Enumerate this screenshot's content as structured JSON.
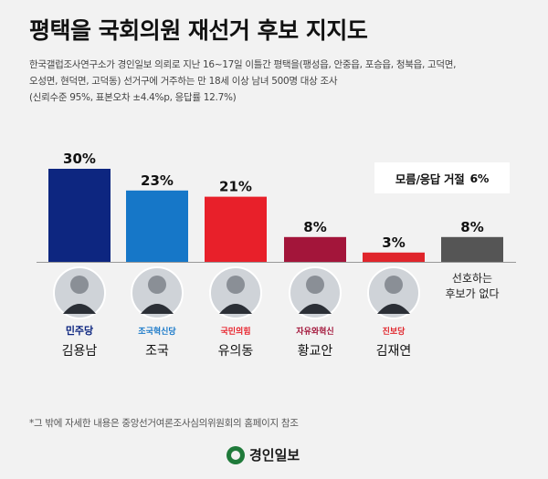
{
  "title": "평택을 국회의원 재선거 후보 지지도",
  "subtitle": [
    "한국갤럽조사연구소가 경인일보 의뢰로 지난 16~17일 이틀간 평택을(팽성읍, 안중읍, 포승읍, 청북읍, 고덕면,",
    "오성면, 현덕면, 고덕동) 선거구에 거주하는 만 18세 이상 남녀 500명 대상 조사",
    "(신뢰수준 95%, 표본오차 ±4.4%p, 응답률 12.7%)"
  ],
  "note": {
    "label": "모름/응답 거절",
    "value": "6%"
  },
  "footnote": "*그 밖에 자세한 내용은 중앙선거여론조사심의위원회의 홈페이지 참조",
  "logo_text": "경인일보",
  "chart_data": {
    "type": "bar",
    "title": "평택을 국회의원 재선거 후보 지지도",
    "categories": [
      "김용남",
      "조국",
      "유의동",
      "황교안",
      "김재연",
      "선호하는 후보가 없다"
    ],
    "values": [
      30,
      23,
      21,
      8,
      3,
      8
    ],
    "value_labels": [
      "30%",
      "23%",
      "21%",
      "8%",
      "3%",
      "8%"
    ],
    "parties": [
      "민주당",
      "조국혁신당",
      "국민의힘",
      "자유와혁신",
      "진보당",
      ""
    ],
    "colors": [
      "#0d2680",
      "#1677c8",
      "#e8202a",
      "#a3153a",
      "#e0252b",
      "#555555"
    ],
    "no_preference_label": [
      "선호하는",
      "후보가 없다"
    ],
    "ylim": [
      0,
      30
    ]
  }
}
